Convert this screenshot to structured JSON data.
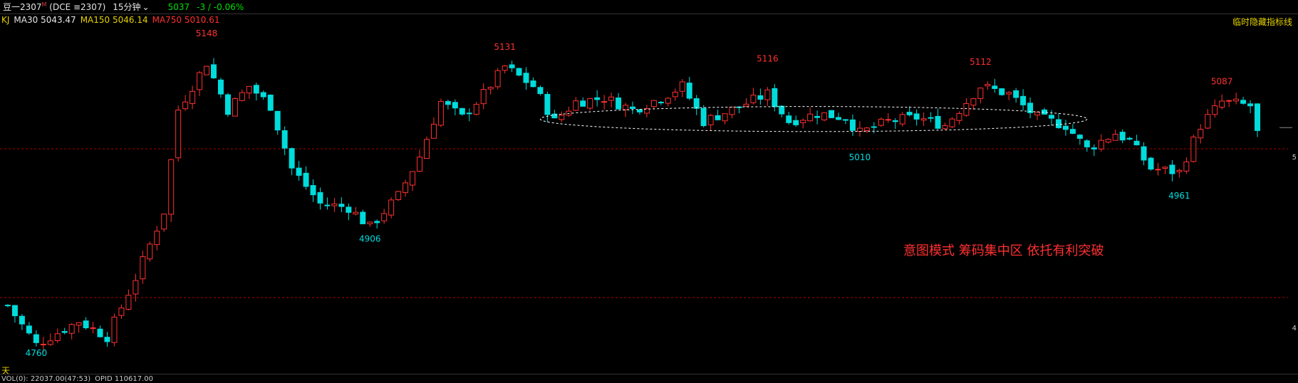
{
  "header": {
    "title": "豆一2307",
    "title_sup": "M",
    "exchange": "(DCE ≡2307)",
    "period": "15分钟",
    "last_price": "5037",
    "change": "-3 / -0.06%"
  },
  "ma_bar": {
    "kj": "KJ",
    "ma30": "MA30 5043.47",
    "ma150": "MA150 5046.14",
    "ma750": "MA750 5010.61"
  },
  "hide_indicator_label": "临时隐藏指标线",
  "bottom_left_label": "天",
  "bottom_bar": {
    "text1": "VOL(0): 22037.00(47:53)",
    "text2": "OPID 110617.00"
  },
  "annotation": "意图模式 筹码集中区 依托有利突破",
  "chart_data": {
    "type": "candlestick",
    "ylim": [
      4740,
      5160
    ],
    "colors": {
      "up": "#ff3030",
      "down": "#00dcdc",
      "label_high": "#ff3030",
      "label_low": "#00dcdc",
      "ellipse": "#ffffff",
      "hline": "#aa0000"
    },
    "grid_lines_y": [
      5010,
      4820
    ],
    "right_labels": [
      "5",
      "4"
    ],
    "peak_labels": [
      {
        "text": "5148",
        "type": "high",
        "price": 5148,
        "index": 28
      },
      {
        "text": "4906",
        "type": "low",
        "price": 4906,
        "index": 51
      },
      {
        "text": "5131",
        "type": "high",
        "price": 5131,
        "index": 70
      },
      {
        "text": "5116",
        "type": "high",
        "price": 5116,
        "index": 107
      },
      {
        "text": "5010",
        "type": "low",
        "price": 5010,
        "index": 120
      },
      {
        "text": "5112",
        "type": "high",
        "price": 5112,
        "index": 137
      },
      {
        "text": "4961",
        "type": "low",
        "price": 4961,
        "index": 165
      },
      {
        "text": "5087",
        "type": "high",
        "price": 5087,
        "index": 171
      },
      {
        "text": "4760",
        "type": "low",
        "price": 4760,
        "index": 4
      }
    ],
    "ellipse": {
      "index_start": 75,
      "index_end": 152,
      "price_center": 5048,
      "price_radius": 16
    },
    "waypoints": [
      [
        0,
        4810
      ],
      [
        4,
        4760
      ],
      [
        10,
        4790
      ],
      [
        14,
        4770
      ],
      [
        18,
        4845
      ],
      [
        22,
        4930
      ],
      [
        24,
        5060
      ],
      [
        28,
        5120
      ],
      [
        31,
        5060
      ],
      [
        34,
        5090
      ],
      [
        37,
        5065
      ],
      [
        40,
        4985
      ],
      [
        44,
        4940
      ],
      [
        48,
        4935
      ],
      [
        51,
        4910
      ],
      [
        55,
        4950
      ],
      [
        58,
        5000
      ],
      [
        61,
        5070
      ],
      [
        64,
        5050
      ],
      [
        67,
        5080
      ],
      [
        70,
        5115
      ],
      [
        74,
        5090
      ],
      [
        77,
        5045
      ],
      [
        80,
        5070
      ],
      [
        84,
        5075
      ],
      [
        88,
        5060
      ],
      [
        92,
        5075
      ],
      [
        95,
        5090
      ],
      [
        98,
        5045
      ],
      [
        102,
        5060
      ],
      [
        107,
        5080
      ],
      [
        110,
        5045
      ],
      [
        114,
        5055
      ],
      [
        118,
        5050
      ],
      [
        120,
        5030
      ],
      [
        124,
        5045
      ],
      [
        128,
        5050
      ],
      [
        132,
        5040
      ],
      [
        135,
        5070
      ],
      [
        137,
        5090
      ],
      [
        141,
        5080
      ],
      [
        145,
        5050
      ],
      [
        149,
        5040
      ],
      [
        152,
        5010
      ],
      [
        156,
        5030
      ],
      [
        158,
        5020
      ],
      [
        161,
        4985
      ],
      [
        165,
        4980
      ],
      [
        168,
        5040
      ],
      [
        171,
        5070
      ],
      [
        175,
        5065
      ],
      [
        176,
        5030
      ]
    ],
    "candle_count": 177
  }
}
